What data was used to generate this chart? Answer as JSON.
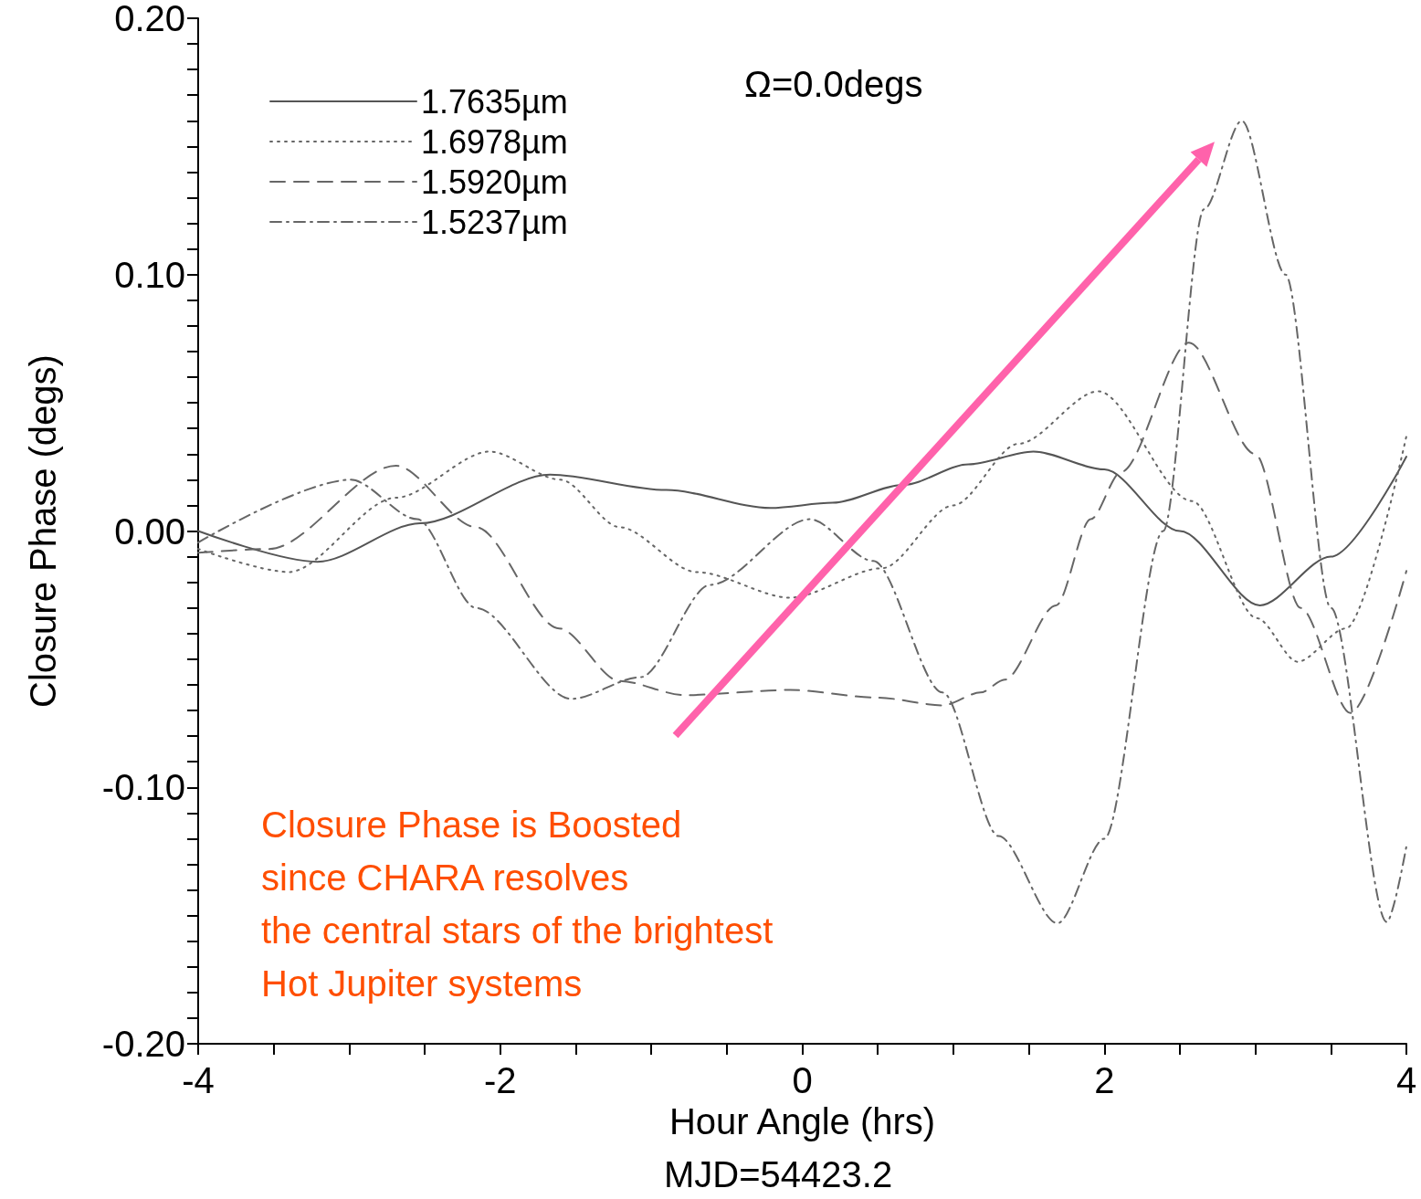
{
  "chart_data": {
    "type": "line",
    "xlabel": "Hour Angle (hrs)",
    "ylabel": "Closure Phase (degs)",
    "annotations": [
      "Ω=0.0degs",
      "Closure Phase is Boosted\nsince CHARA resolves\nthe central stars of the brightest\nHot Jupiter systems",
      "MJD=54423.2"
    ],
    "xlim": [
      -4,
      4
    ],
    "ylim": [
      -0.2,
      0.2
    ],
    "xticks": [
      -4,
      {
        "value": -3.5,
        "label": null
      },
      {
        "value": -3,
        "label": null
      },
      {
        "value": -2.5,
        "label": null
      },
      -2,
      {
        "value": -1.5,
        "label": null
      },
      {
        "value": -1,
        "label": null
      },
      {
        "value": -0.5,
        "label": null
      },
      0,
      {
        "value": 0.5,
        "label": null
      },
      {
        "value": 1,
        "label": null
      },
      {
        "value": 1.5,
        "label": null
      },
      2,
      {
        "value": 2.5,
        "label": null
      },
      {
        "value": 3,
        "label": null
      },
      {
        "value": 3.5,
        "label": null
      },
      4
    ],
    "yticks": [
      {
        "value": -0.2,
        "label": "-0.20"
      },
      {
        "value": -0.19,
        "label": null
      },
      {
        "value": -0.18,
        "label": null
      },
      {
        "value": -0.17,
        "label": null
      },
      {
        "value": -0.16,
        "label": null
      },
      {
        "value": -0.15,
        "label": null
      },
      {
        "value": -0.14,
        "label": null
      },
      {
        "value": -0.13,
        "label": null
      },
      {
        "value": -0.12,
        "label": null
      },
      {
        "value": -0.11,
        "label": null
      },
      {
        "value": -0.1,
        "label": "-0.10"
      },
      {
        "value": -0.09,
        "label": null
      },
      {
        "value": -0.08,
        "label": null
      },
      {
        "value": -0.07,
        "label": null
      },
      {
        "value": -0.06,
        "label": null
      },
      {
        "value": -0.05,
        "label": null
      },
      {
        "value": -0.04,
        "label": null
      },
      {
        "value": -0.03,
        "label": null
      },
      {
        "value": -0.02,
        "label": null
      },
      {
        "value": -0.01,
        "label": null
      },
      {
        "value": 0,
        "label": "0.00"
      },
      {
        "value": 0.01,
        "label": null
      },
      {
        "value": 0.02,
        "label": null
      },
      {
        "value": 0.03,
        "label": null
      },
      {
        "value": 0.04,
        "label": null
      },
      {
        "value": 0.05,
        "label": null
      },
      {
        "value": 0.06,
        "label": null
      },
      {
        "value": 0.07,
        "label": null
      },
      {
        "value": 0.08,
        "label": null
      },
      {
        "value": 0.09,
        "label": null
      },
      {
        "value": 0.1,
        "label": "0.10"
      },
      {
        "value": 0.11,
        "label": null
      },
      {
        "value": 0.12,
        "label": null
      },
      {
        "value": 0.13,
        "label": null
      },
      {
        "value": 0.14,
        "label": null
      },
      {
        "value": 0.15,
        "label": null
      },
      {
        "value": 0.16,
        "label": null
      },
      {
        "value": 0.17,
        "label": null
      },
      {
        "value": 0.18,
        "label": null
      },
      {
        "value": 0.19,
        "label": null
      },
      {
        "value": 0.2,
        "label": "0.20"
      }
    ],
    "grid": false,
    "legend": "top left",
    "marker": "none",
    "series": [
      {
        "name": "1.7635µm",
        "color": "#555555",
        "line_style": "solid",
        "x": [
          -4,
          -3.21,
          -2.53,
          -1.67,
          -0.9,
          -0.21,
          0.2,
          0.67,
          1.1,
          1.53,
          2.0,
          2.5,
          3.03,
          3.5,
          4
        ],
        "values": [
          0,
          -0.012,
          0.003,
          0.022,
          0.016,
          0.009,
          0.011,
          0.018,
          0.026,
          0.031,
          0.024,
          0,
          -0.029,
          -0.01,
          0.029
        ]
      },
      {
        "name": "1.6978µm",
        "color": "#666666",
        "line_style": "dotted",
        "x": [
          -4,
          -3.4,
          -2.69,
          -2.07,
          -1.6,
          -1.21,
          -0.7,
          -0.08,
          0.53,
          1.0,
          1.43,
          1.96,
          2.58,
          3.01,
          3.28,
          3.6,
          4
        ],
        "values": [
          -0.007,
          -0.016,
          0.013,
          0.031,
          0.02,
          0.0015,
          -0.016,
          -0.026,
          -0.0145,
          0.01,
          0.034,
          0.0545,
          0.0117,
          -0.034,
          -0.051,
          -0.038,
          0.037
        ]
      },
      {
        "name": "1.5920µm",
        "color": "#666666",
        "line_style": "dashed",
        "x": [
          -4,
          -3.53,
          -2.69,
          -2.16,
          -1.61,
          -1.21,
          -0.78,
          -0.08,
          0.5,
          0.93,
          1.18,
          1.34,
          1.68,
          1.91,
          2.11,
          2.56,
          3.0,
          3.3,
          3.63,
          4
        ],
        "values": [
          -0.0085,
          -0.007,
          0.0255,
          0.0015,
          -0.038,
          -0.0585,
          -0.064,
          -0.062,
          -0.065,
          -0.068,
          -0.063,
          -0.058,
          -0.029,
          0.0046,
          0.023,
          0.0735,
          0.03,
          -0.03,
          -0.071,
          -0.0156
        ]
      },
      {
        "name": "1.5237µm",
        "color": "#666666",
        "line_style": "dashdot",
        "x": [
          -4,
          -2.99,
          -2.55,
          -2.16,
          -1.53,
          -1.07,
          -0.61,
          0.05,
          0.47,
          0.93,
          1.3,
          1.69,
          2.0,
          2.39,
          2.66,
          2.91,
          3.2,
          3.5,
          3.87,
          4
        ],
        "values": [
          -0.0045,
          0.02,
          0.0046,
          -0.03,
          -0.0655,
          -0.057,
          -0.021,
          0.0046,
          -0.0117,
          -0.063,
          -0.119,
          -0.153,
          -0.12,
          0.0,
          0.1255,
          0.16,
          0.1,
          -0.03,
          -0.1525,
          -0.123
        ]
      }
    ]
  }
}
